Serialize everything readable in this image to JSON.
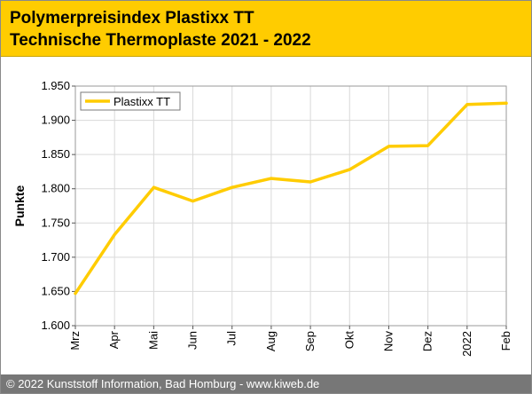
{
  "header": {
    "title_line1": "Polymerpreisindex Plastixx TT",
    "title_line2": "Technische Thermoplaste 2021 - 2022",
    "background_color": "#ffcc00"
  },
  "footer": {
    "text": "© 2022 Kunststoff Information, Bad Homburg - www.kiweb.de"
  },
  "chart_data": {
    "type": "line",
    "title": "",
    "xlabel": "",
    "ylabel": "Punkte",
    "categories": [
      "Mrz",
      "Apr",
      "Mai",
      "Jun",
      "Jul",
      "Aug",
      "Sep",
      "Okt",
      "Nov",
      "Dez",
      "2022",
      "Feb"
    ],
    "series": [
      {
        "name": "Plastixx TT",
        "color": "#ffcc00",
        "values": [
          1647,
          1733,
          1802,
          1782,
          1802,
          1815,
          1810,
          1828,
          1862,
          1863,
          1923,
          1925
        ]
      }
    ],
    "ylim": [
      1600,
      1950
    ],
    "yticks": [
      1600,
      1650,
      1700,
      1750,
      1800,
      1850,
      1900,
      1950
    ],
    "ytick_labels": [
      "1.600",
      "1.650",
      "1.700",
      "1.750",
      "1.800",
      "1.850",
      "1.900",
      "1.950"
    ],
    "grid": true,
    "legend_position": "top-left"
  }
}
